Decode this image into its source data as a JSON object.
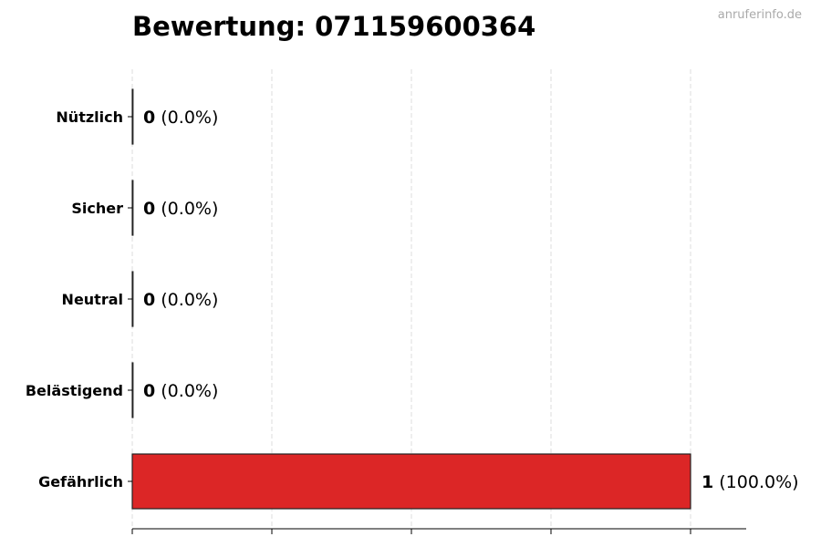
{
  "watermark": "anruferinfo.de",
  "chart_data": {
    "type": "bar",
    "orientation": "horizontal",
    "title": "Bewertung: 071159600364",
    "xlabel": "",
    "ylabel": "",
    "categories": [
      "Nützlich",
      "Sicher",
      "Neutral",
      "Belästigend",
      "Gefährlich"
    ],
    "values": [
      0,
      0,
      0,
      0,
      1
    ],
    "percent_labels": [
      "(0.0%)",
      "(0.0%)",
      "(0.0%)",
      "(0.0%)",
      "(100.0%)"
    ],
    "bar_color": "#dc2626",
    "xlim": [
      0,
      1.1
    ],
    "xticks": [
      0,
      0.25,
      0.5,
      0.75,
      1.0
    ],
    "xtick_labels_shown": false,
    "grid": "vertical dashed"
  }
}
